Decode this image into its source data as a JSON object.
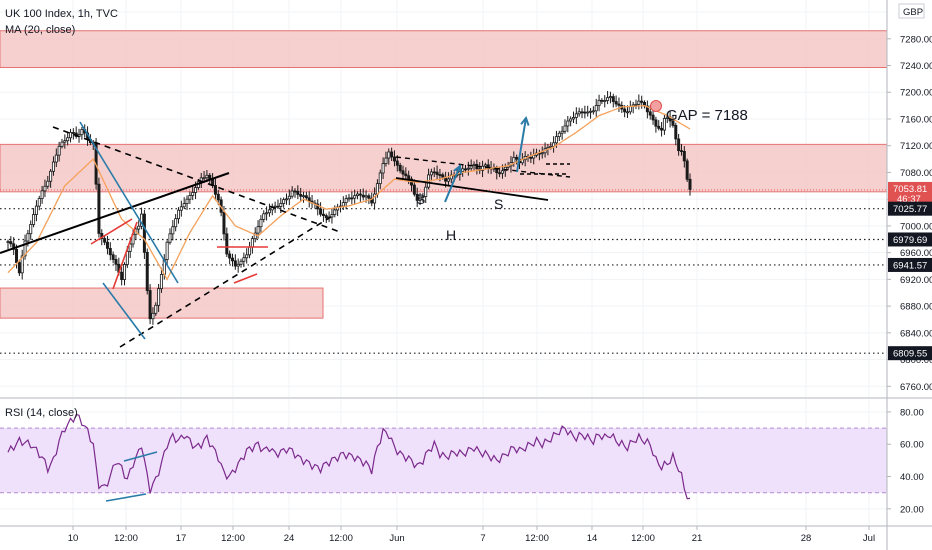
{
  "header": {
    "symbol_line": "UK 100 Index, 1h, TVC",
    "ma_line": "MA (20, close)",
    "currency": "GBP",
    "rsi_line": "RSI (14, close)"
  },
  "colors": {
    "zone_fill": "#f4c7c7",
    "zone_edge": "#e57373",
    "ma_line": "#f5a15a",
    "trend_black": "#000000",
    "trend_blue": "#2a7ba8",
    "trend_red": "#e53935",
    "rsi_line": "#7b2a8c",
    "rsi_band": "#efe0fb",
    "candle": "#1a1a1a",
    "price_tag": "#e05151"
  },
  "chart_data": [
    {
      "type": "candlestick",
      "panel": "price",
      "ylim": [
        6744,
        7338
      ],
      "yticks": [
        6760,
        6800,
        6840,
        6880,
        6920,
        6960,
        7000,
        7040,
        7080,
        7120,
        7160,
        7200,
        7240,
        7280,
        7320
      ],
      "x_tick_labels": [
        "10",
        "12:00",
        "17",
        "12:00",
        "24",
        "12:00",
        "Jun",
        "7",
        "12:00",
        "14",
        "12:00",
        "21",
        "28",
        "Jul"
      ],
      "close_path": [
        [
          0,
          6975
        ],
        [
          2,
          6965
        ],
        [
          4,
          6930
        ],
        [
          6,
          6980
        ],
        [
          8,
          7000
        ],
        [
          10,
          7030
        ],
        [
          12,
          7050
        ],
        [
          14,
          7070
        ],
        [
          16,
          7095
        ],
        [
          18,
          7120
        ],
        [
          20,
          7125
        ],
        [
          22,
          7140
        ],
        [
          24,
          7135
        ],
        [
          26,
          7145
        ],
        [
          28,
          7130
        ],
        [
          30,
          7120
        ],
        [
          31,
          7060
        ],
        [
          32,
          6990
        ],
        [
          34,
          6975
        ],
        [
          36,
          6960
        ],
        [
          38,
          6940
        ],
        [
          40,
          6920
        ],
        [
          42,
          6960
        ],
        [
          44,
          6990
        ],
        [
          46,
          7000
        ],
        [
          47,
          7020
        ],
        [
          48,
          6960
        ],
        [
          49,
          6900
        ],
        [
          50,
          6860
        ],
        [
          52,
          6880
        ],
        [
          54,
          6930
        ],
        [
          56,
          6975
        ],
        [
          58,
          7000
        ],
        [
          60,
          7020
        ],
        [
          62,
          7035
        ],
        [
          64,
          7045
        ],
        [
          66,
          7060
        ],
        [
          68,
          7070
        ],
        [
          70,
          7075
        ],
        [
          72,
          7060
        ],
        [
          74,
          7040
        ],
        [
          75,
          7020
        ],
        [
          76,
          6990
        ],
        [
          77,
          6960
        ],
        [
          78,
          6950
        ],
        [
          80,
          6940
        ],
        [
          82,
          6945
        ],
        [
          84,
          6960
        ],
        [
          86,
          6980
        ],
        [
          88,
          7000
        ],
        [
          90,
          7015
        ],
        [
          92,
          7025
        ],
        [
          94,
          7030
        ],
        [
          96,
          7035
        ],
        [
          98,
          7040
        ],
        [
          100,
          7050
        ],
        [
          102,
          7048
        ],
        [
          104,
          7045
        ],
        [
          106,
          7040
        ],
        [
          108,
          7030
        ],
        [
          110,
          7018
        ],
        [
          112,
          7010
        ],
        [
          114,
          7020
        ],
        [
          116,
          7028
        ],
        [
          118,
          7035
        ],
        [
          120,
          7040
        ],
        [
          122,
          7045
        ],
        [
          124,
          7048
        ],
        [
          126,
          7045
        ],
        [
          128,
          7035
        ],
        [
          130,
          7060
        ],
        [
          132,
          7095
        ],
        [
          134,
          7110
        ],
        [
          136,
          7100
        ],
        [
          138,
          7080
        ],
        [
          140,
          7075
        ],
        [
          142,
          7060
        ],
        [
          144,
          7040
        ],
        [
          146,
          7045
        ],
        [
          148,
          7075
        ],
        [
          150,
          7080
        ],
        [
          152,
          7075
        ],
        [
          154,
          7070
        ],
        [
          156,
          7075
        ],
        [
          158,
          7078
        ],
        [
          160,
          7082
        ],
        [
          162,
          7088
        ],
        [
          164,
          7092
        ],
        [
          166,
          7085
        ],
        [
          168,
          7090
        ],
        [
          170,
          7085
        ],
        [
          172,
          7080
        ],
        [
          174,
          7083
        ],
        [
          176,
          7092
        ],
        [
          178,
          7100
        ],
        [
          180,
          7095
        ],
        [
          182,
          7102
        ],
        [
          184,
          7105
        ],
        [
          186,
          7108
        ],
        [
          188,
          7110
        ],
        [
          190,
          7115
        ],
        [
          192,
          7125
        ],
        [
          194,
          7140
        ],
        [
          196,
          7150
        ],
        [
          198,
          7160
        ],
        [
          200,
          7165
        ],
        [
          202,
          7172
        ],
        [
          204,
          7170
        ],
        [
          206,
          7175
        ],
        [
          208,
          7185
        ],
        [
          210,
          7188
        ],
        [
          212,
          7192
        ],
        [
          214,
          7185
        ],
        [
          216,
          7175
        ],
        [
          218,
          7170
        ],
        [
          220,
          7180
        ],
        [
          222,
          7186
        ],
        [
          224,
          7182
        ],
        [
          226,
          7165
        ],
        [
          228,
          7150
        ],
        [
          230,
          7140
        ],
        [
          231,
          7160
        ],
        [
          232,
          7165
        ],
        [
          234,
          7150
        ],
        [
          236,
          7115
        ],
        [
          237,
          7110
        ],
        [
          238,
          7095
        ],
        [
          239,
          7070
        ],
        [
          240,
          7054
        ]
      ],
      "moving_average_path": [
        [
          0,
          6930
        ],
        [
          10,
          6975
        ],
        [
          20,
          7060
        ],
        [
          30,
          7100
        ],
        [
          40,
          7010
        ],
        [
          48,
          6980
        ],
        [
          56,
          6920
        ],
        [
          64,
          6990
        ],
        [
          72,
          7045
        ],
        [
          80,
          7000
        ],
        [
          88,
          6985
        ],
        [
          96,
          7015
        ],
        [
          104,
          7040
        ],
        [
          112,
          7025
        ],
        [
          120,
          7030
        ],
        [
          128,
          7040
        ],
        [
          136,
          7070
        ],
        [
          144,
          7065
        ],
        [
          152,
          7070
        ],
        [
          160,
          7080
        ],
        [
          168,
          7085
        ],
        [
          176,
          7090
        ],
        [
          184,
          7105
        ],
        [
          192,
          7118
        ],
        [
          200,
          7140
        ],
        [
          208,
          7165
        ],
        [
          216,
          7178
        ],
        [
          224,
          7180
        ],
        [
          232,
          7165
        ],
        [
          240,
          7145
        ]
      ],
      "zones": [
        {
          "from": 7237,
          "to": 7292
        },
        {
          "from": 7051,
          "to": 7122
        },
        {
          "from": 6862,
          "to": 6907
        }
      ],
      "price_labels": [
        {
          "value": 7053.81,
          "label": "7053.81",
          "sublabel": "46:37",
          "style": "current"
        },
        {
          "value": 7025.77,
          "label": "7025.77",
          "style": "level"
        },
        {
          "value": 6979.69,
          "label": "6979.69",
          "style": "level"
        },
        {
          "value": 6941.57,
          "label": "6941.57",
          "style": "level"
        },
        {
          "value": 6809.55,
          "label": "6809.55",
          "style": "level"
        }
      ],
      "annotations": [
        {
          "text": "GAP = 7188",
          "role": "gap-label"
        },
        {
          "text": "S",
          "role": "left-shoulder"
        },
        {
          "text": "H",
          "role": "head"
        },
        {
          "text": "S",
          "role": "right-shoulder"
        }
      ]
    },
    {
      "type": "line",
      "panel": "rsi",
      "ylim": [
        10,
        88
      ],
      "yticks": [
        20,
        40,
        60,
        80
      ],
      "band": [
        30,
        70
      ],
      "rsi_path": [
        [
          0,
          55
        ],
        [
          4,
          62
        ],
        [
          8,
          60
        ],
        [
          12,
          52
        ],
        [
          14,
          45
        ],
        [
          16,
          50
        ],
        [
          18,
          62
        ],
        [
          20,
          70
        ],
        [
          22,
          74
        ],
        [
          24,
          78
        ],
        [
          26,
          74
        ],
        [
          28,
          68
        ],
        [
          30,
          60
        ],
        [
          31,
          45
        ],
        [
          32,
          35
        ],
        [
          34,
          33
        ],
        [
          36,
          40
        ],
        [
          38,
          50
        ],
        [
          40,
          45
        ],
        [
          42,
          38
        ],
        [
          44,
          48
        ],
        [
          46,
          55
        ],
        [
          47,
          60
        ],
        [
          48,
          50
        ],
        [
          49,
          40
        ],
        [
          50,
          32
        ],
        [
          52,
          38
        ],
        [
          54,
          48
        ],
        [
          56,
          60
        ],
        [
          58,
          65
        ],
        [
          60,
          62
        ],
        [
          62,
          66
        ],
        [
          64,
          62
        ],
        [
          66,
          58
        ],
        [
          68,
          60
        ],
        [
          70,
          64
        ],
        [
          72,
          58
        ],
        [
          74,
          52
        ],
        [
          76,
          42
        ],
        [
          78,
          40
        ],
        [
          80,
          45
        ],
        [
          82,
          50
        ],
        [
          84,
          56
        ],
        [
          86,
          58
        ],
        [
          88,
          60
        ],
        [
          90,
          56
        ],
        [
          92,
          58
        ],
        [
          94,
          54
        ],
        [
          96,
          55
        ],
        [
          98,
          57
        ],
        [
          100,
          56
        ],
        [
          102,
          52
        ],
        [
          104,
          50
        ],
        [
          106,
          48
        ],
        [
          108,
          46
        ],
        [
          110,
          45
        ],
        [
          112,
          48
        ],
        [
          114,
          50
        ],
        [
          116,
          52
        ],
        [
          118,
          54
        ],
        [
          120,
          53
        ],
        [
          122,
          52
        ],
        [
          124,
          50
        ],
        [
          126,
          48
        ],
        [
          128,
          44
        ],
        [
          130,
          58
        ],
        [
          132,
          68
        ],
        [
          134,
          66
        ],
        [
          136,
          58
        ],
        [
          138,
          54
        ],
        [
          140,
          52
        ],
        [
          142,
          50
        ],
        [
          144,
          46
        ],
        [
          146,
          50
        ],
        [
          148,
          56
        ],
        [
          150,
          60
        ],
        [
          152,
          54
        ],
        [
          154,
          52
        ],
        [
          156,
          54
        ],
        [
          158,
          55
        ],
        [
          160,
          54
        ],
        [
          162,
          56
        ],
        [
          164,
          58
        ],
        [
          166,
          55
        ],
        [
          168,
          54
        ],
        [
          170,
          52
        ],
        [
          172,
          50
        ],
        [
          174,
          52
        ],
        [
          176,
          55
        ],
        [
          178,
          58
        ],
        [
          180,
          56
        ],
        [
          182,
          58
        ],
        [
          184,
          60
        ],
        [
          186,
          62
        ],
        [
          188,
          60
        ],
        [
          190,
          62
        ],
        [
          192,
          65
        ],
        [
          194,
          68
        ],
        [
          196,
          70
        ],
        [
          198,
          66
        ],
        [
          200,
          64
        ],
        [
          202,
          66
        ],
        [
          204,
          64
        ],
        [
          206,
          62
        ],
        [
          208,
          66
        ],
        [
          210,
          64
        ],
        [
          212,
          66
        ],
        [
          214,
          62
        ],
        [
          216,
          60
        ],
        [
          218,
          58
        ],
        [
          220,
          62
        ],
        [
          222,
          64
        ],
        [
          224,
          62
        ],
        [
          226,
          60
        ],
        [
          228,
          50
        ],
        [
          230,
          46
        ],
        [
          232,
          48
        ],
        [
          234,
          52
        ],
        [
          236,
          45
        ],
        [
          237,
          40
        ],
        [
          238,
          33
        ],
        [
          239,
          28
        ],
        [
          240,
          24
        ]
      ]
    }
  ]
}
